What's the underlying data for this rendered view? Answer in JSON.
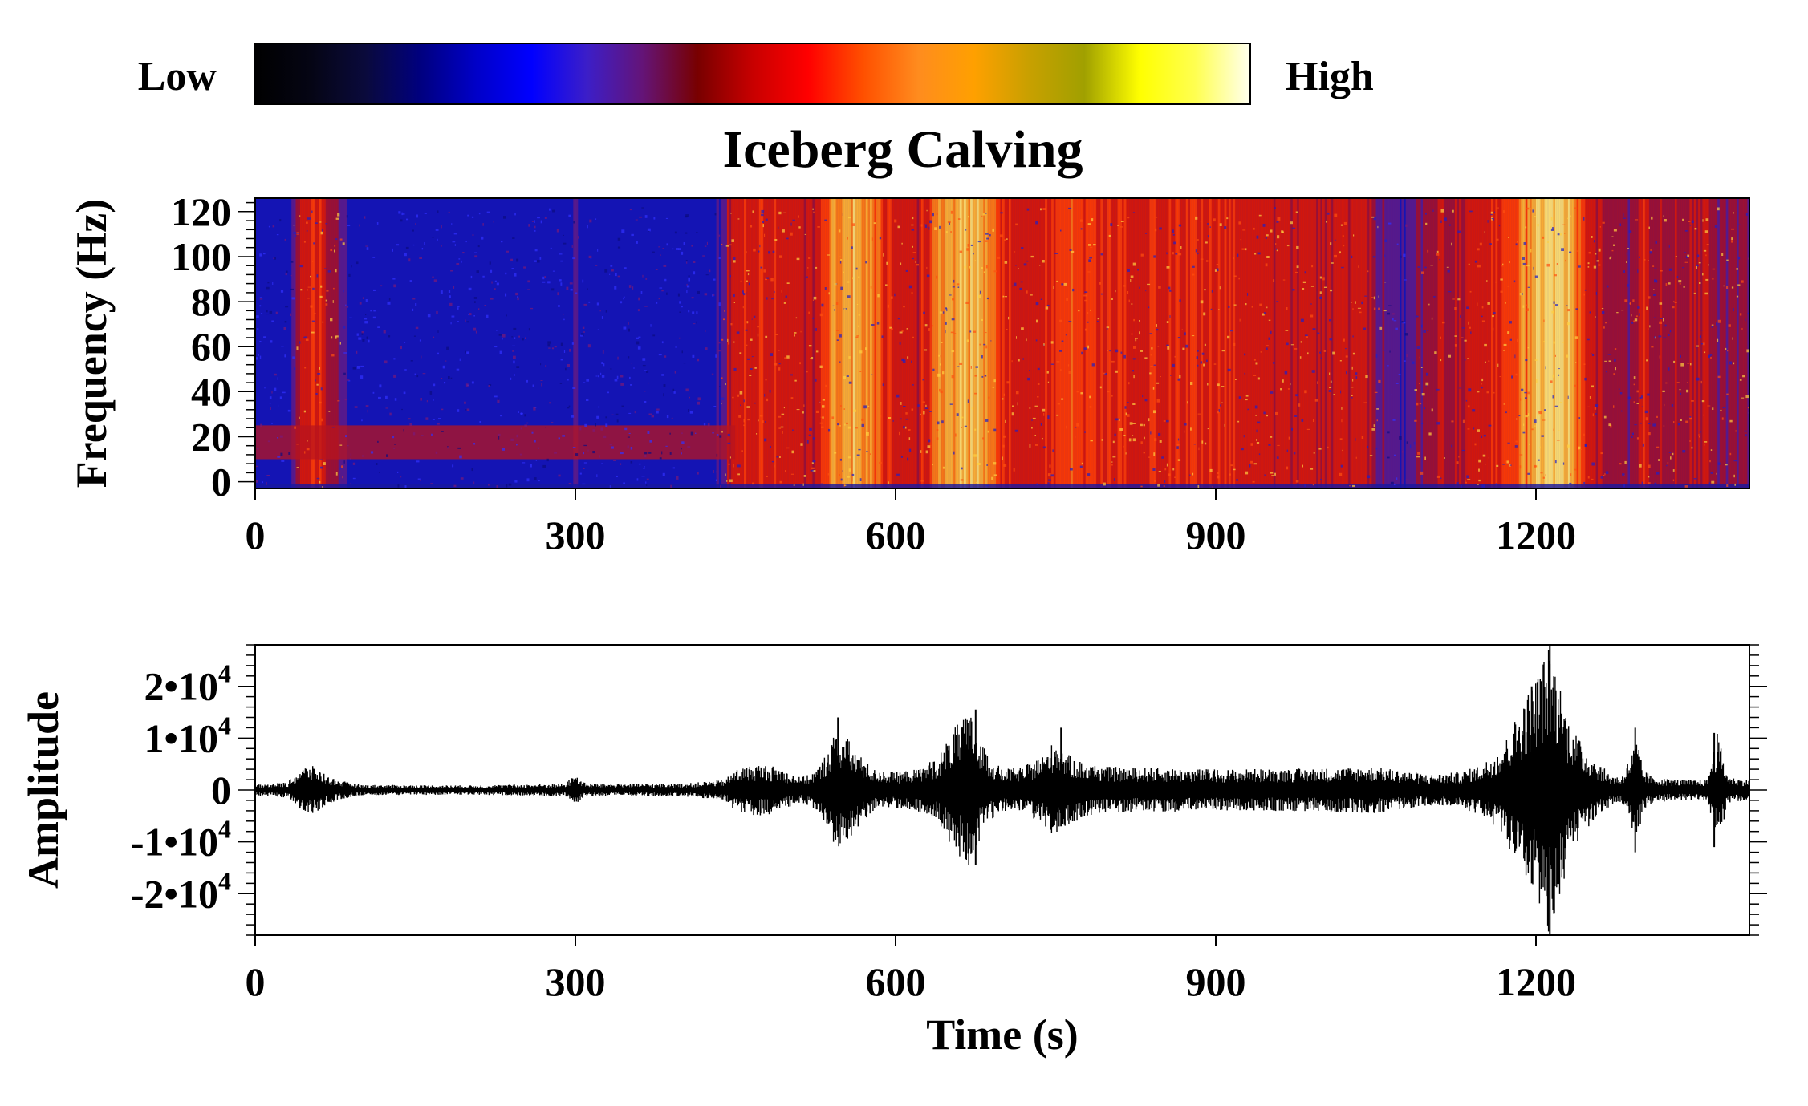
{
  "colorbar": {
    "low_label": "Low",
    "high_label": "High",
    "colors": [
      "#000000",
      "#050514",
      "#0a0a3c",
      "#000080",
      "#0000c8",
      "#0000ff",
      "#3c1ec8",
      "#641478",
      "#780000",
      "#c80000",
      "#ff0000",
      "#ff5000",
      "#ff8c1e",
      "#ffa000",
      "#c8a000",
      "#a0a000",
      "#ffff00",
      "#ffff50",
      "#fffff0"
    ]
  },
  "chart_data": [
    {
      "type": "heatmap",
      "title": "Iceberg Calving",
      "xlabel": "",
      "ylabel": "Frequency (Hz)",
      "xlim": [
        0,
        1400
      ],
      "ylim": [
        -3,
        126
      ],
      "x_ticks": [
        0,
        300,
        600,
        900,
        1200
      ],
      "x_tick_labels": [
        "0",
        "300",
        "600",
        "900",
        "1200"
      ],
      "y_ticks": [
        0,
        20,
        40,
        60,
        80,
        100,
        120
      ],
      "y_tick_labels": [
        "0",
        "20",
        "40",
        "60",
        "80",
        "100",
        "120"
      ],
      "energy_profile": {
        "time_s": [
          0,
          30,
          45,
          60,
          75,
          90,
          150,
          290,
          300,
          310,
          430,
          445,
          470,
          500,
          520,
          540,
          560,
          580,
          600,
          620,
          640,
          660,
          680,
          700,
          720,
          740,
          760,
          800,
          850,
          900,
          950,
          1000,
          1040,
          1060,
          1075,
          1100,
          1130,
          1160,
          1180,
          1200,
          1215,
          1230,
          1250,
          1270,
          1290,
          1300,
          1310,
          1330,
          1360,
          1370,
          1400
        ],
        "relative_level": [
          0.1,
          0.15,
          0.6,
          0.6,
          0.4,
          0.2,
          0.15,
          0.15,
          0.3,
          0.15,
          0.15,
          0.55,
          0.6,
          0.55,
          0.5,
          0.8,
          0.85,
          0.75,
          0.5,
          0.55,
          0.75,
          0.85,
          0.85,
          0.6,
          0.55,
          0.6,
          0.7,
          0.6,
          0.6,
          0.6,
          0.55,
          0.55,
          0.55,
          0.3,
          0.25,
          0.45,
          0.5,
          0.6,
          0.7,
          0.85,
          0.9,
          0.85,
          0.55,
          0.45,
          0.4,
          0.6,
          0.45,
          0.45,
          0.5,
          0.4,
          0.35
        ]
      },
      "low_frequency_band_hz": [
        10,
        25
      ]
    },
    {
      "type": "line",
      "title": "",
      "xlabel": "Time (s)",
      "ylabel": "Amplitude",
      "xlim": [
        0,
        1400
      ],
      "ylim": [
        -28000,
        28000
      ],
      "x_ticks": [
        0,
        300,
        600,
        900,
        1200
      ],
      "x_tick_labels": [
        "0",
        "300",
        "600",
        "900",
        "1200"
      ],
      "y_ticks": [
        20000,
        10000,
        0,
        -10000,
        -20000
      ],
      "y_tick_labels": [
        {
          "mantissa": "2•10",
          "exp": "4"
        },
        {
          "mantissa": "1•10",
          "exp": "4"
        },
        {
          "mantissa": "0",
          "exp": ""
        },
        {
          "mantissa": "-1•10",
          "exp": "4"
        },
        {
          "mantissa": "-2•10",
          "exp": "4"
        }
      ],
      "envelope": {
        "time_s": [
          0,
          30,
          40,
          50,
          60,
          70,
          80,
          100,
          200,
          290,
          300,
          310,
          400,
          440,
          450,
          470,
          490,
          500,
          510,
          520,
          530,
          545,
          555,
          565,
          580,
          600,
          620,
          640,
          655,
          670,
          680,
          690,
          700,
          720,
          740,
          750,
          760,
          780,
          800,
          900,
          1000,
          1050,
          1100,
          1130,
          1150,
          1170,
          1190,
          1200,
          1212,
          1220,
          1230,
          1245,
          1260,
          1270,
          1280,
          1285,
          1295,
          1300,
          1310,
          1330,
          1350,
          1360,
          1370,
          1380,
          1400
        ],
        "amplitude": [
          1000,
          1500,
          3500,
          5000,
          4000,
          2500,
          1800,
          1000,
          900,
          1200,
          3000,
          1200,
          1200,
          2000,
          4000,
          5000,
          4500,
          3500,
          2500,
          3000,
          5000,
          12000,
          10000,
          7000,
          4000,
          3500,
          4000,
          6500,
          12000,
          15000,
          9000,
          6000,
          4000,
          4500,
          7000,
          10000,
          7000,
          5000,
          4500,
          4000,
          4200,
          4500,
          3000,
          3500,
          5000,
          9000,
          18000,
          22000,
          28000,
          23000,
          14000,
          8000,
          5000,
          3000,
          2500,
          5000,
          10000,
          4000,
          2500,
          2000,
          2000,
          2000,
          11000,
          2500,
          2000
        ]
      },
      "spikes": [
        {
          "time_s": 1213,
          "peak": 28000,
          "trough": -28000
        },
        {
          "time_s": 1196,
          "peak": 20000,
          "trough": -18000
        },
        {
          "time_s": 1293,
          "peak": 12000,
          "trough": -12000
        },
        {
          "time_s": 1367,
          "peak": 11000,
          "trough": -11000
        },
        {
          "time_s": 675,
          "peak": 15500,
          "trough": -14500
        },
        {
          "time_s": 546,
          "peak": 14000,
          "trough": -9000
        },
        {
          "time_s": 755,
          "peak": 12000,
          "trough": -7000
        }
      ]
    }
  ]
}
